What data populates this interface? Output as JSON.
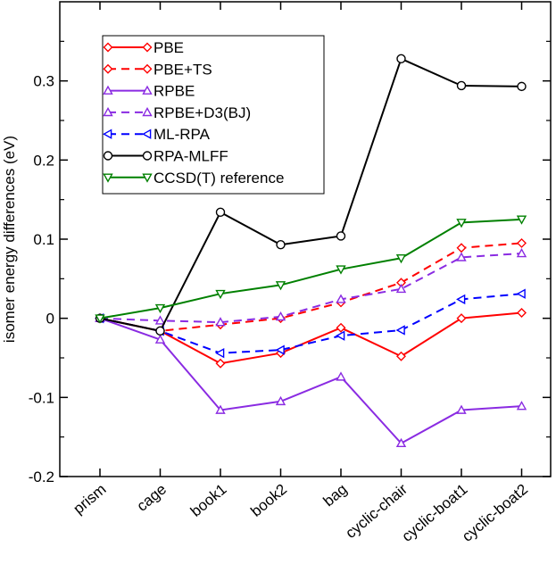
{
  "chart_data": {
    "type": "line",
    "title": "",
    "xlabel": "",
    "ylabel": "isomer energy differences (eV)",
    "categories": [
      "prism",
      "cage",
      "book1",
      "book2",
      "bag",
      "cyclic-chair",
      "cyclic-boat1",
      "cyclic-boat2"
    ],
    "ylim": [
      -0.2,
      0.4
    ],
    "yticks": [
      -0.2,
      -0.1,
      0,
      0.1,
      0.2,
      0.3
    ],
    "ytick_labels": [
      "-0.2",
      "-0.1",
      "0",
      "0.1",
      "0.2",
      "0.3"
    ],
    "grid": false,
    "legend_position": "top-left",
    "series": [
      {
        "name": "PBE",
        "color": "#ff0000",
        "dash": "solid",
        "marker": "diamond",
        "values": [
          0.0,
          -0.016,
          -0.057,
          -0.044,
          -0.012,
          -0.048,
          0.0,
          0.007
        ]
      },
      {
        "name": "PBE+TS",
        "color": "#ff0000",
        "dash": "dashed",
        "marker": "diamond",
        "values": [
          0.0,
          -0.016,
          -0.008,
          0.0,
          0.02,
          0.045,
          0.089,
          0.095
        ]
      },
      {
        "name": "RPBE",
        "color": "#8a2be2",
        "dash": "solid",
        "marker": "triangle-up",
        "values": [
          0.0,
          -0.027,
          -0.116,
          -0.105,
          -0.074,
          -0.158,
          -0.116,
          -0.111
        ]
      },
      {
        "name": "RPBE+D3(BJ)",
        "color": "#8a2be2",
        "dash": "dashed",
        "marker": "triangle-up",
        "values": [
          0.0,
          -0.003,
          -0.005,
          0.002,
          0.024,
          0.037,
          0.077,
          0.082
        ]
      },
      {
        "name": "ML-RPA",
        "color": "#0000ff",
        "dash": "dashed",
        "marker": "triangle-left",
        "values": [
          0.0,
          -0.016,
          -0.044,
          -0.04,
          -0.022,
          -0.015,
          0.024,
          0.031
        ]
      },
      {
        "name": "RPA-MLFF",
        "color": "#000000",
        "dash": "solid",
        "marker": "circle",
        "values": [
          0.0,
          -0.016,
          0.134,
          0.093,
          0.104,
          0.328,
          0.294,
          0.293
        ]
      },
      {
        "name": "CCSD(T) reference",
        "color": "#008000",
        "dash": "solid",
        "marker": "triangle-down",
        "values": [
          0.0,
          0.013,
          0.031,
          0.042,
          0.062,
          0.076,
          0.121,
          0.125
        ]
      }
    ]
  }
}
